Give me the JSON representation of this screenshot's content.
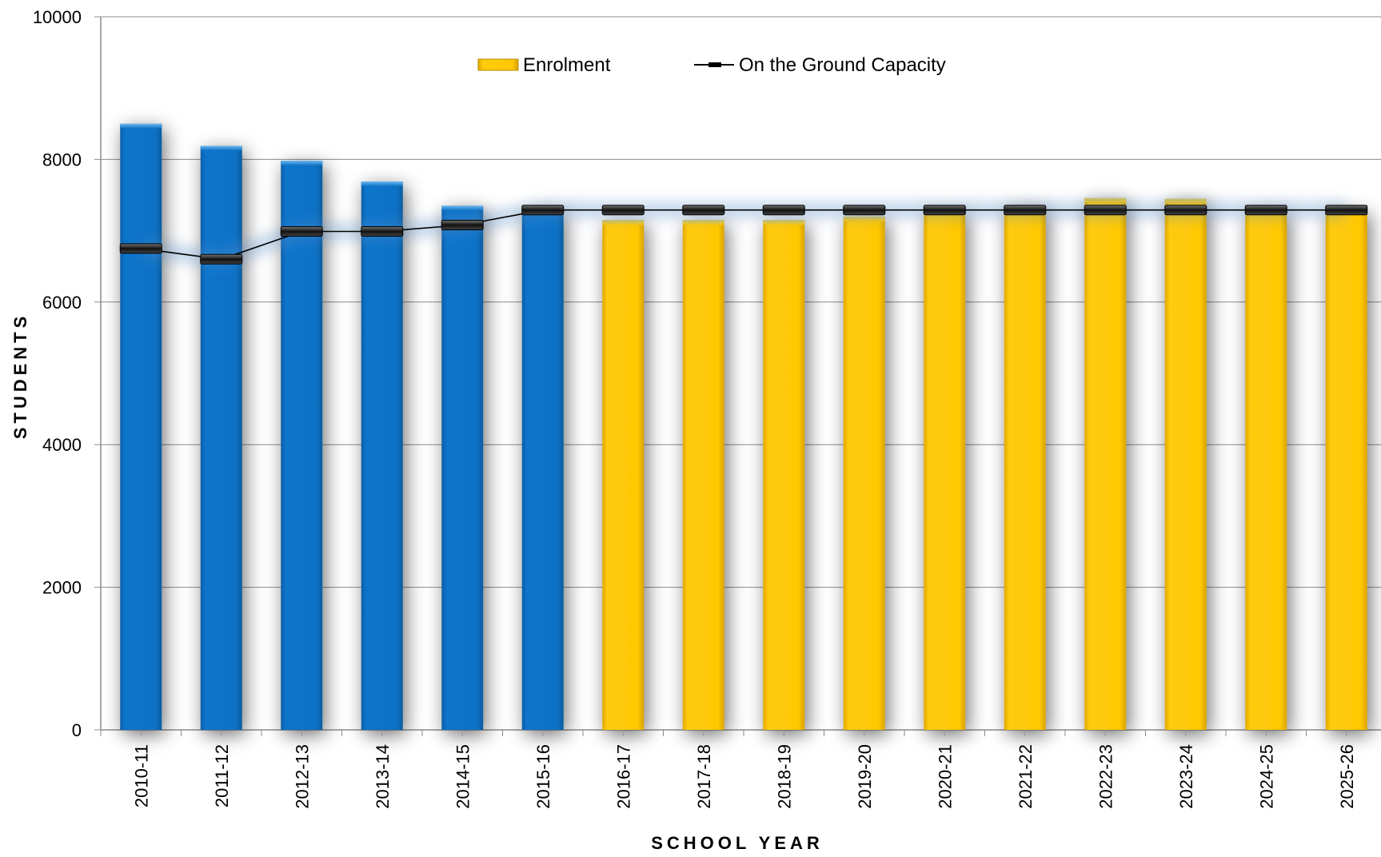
{
  "chart_data": {
    "type": "bar",
    "title": "",
    "xlabel": "SCHOOL YEAR",
    "ylabel": "STUDENTS",
    "ylim": [
      0,
      10000
    ],
    "yticks": [
      "0",
      "2000",
      "4000",
      "6000",
      "8000",
      "10000"
    ],
    "grid": true,
    "legend_position": "top-center",
    "categories": [
      "2010-11",
      "2011-12",
      "2012-13",
      "2013-14",
      "2014-15",
      "2015-16",
      "2016-17",
      "2017-18",
      "2018-19",
      "2019-20",
      "2020-21",
      "2021-22",
      "2022-23",
      "2023-24",
      "2024-25",
      "2025-26"
    ],
    "series": [
      {
        "name": "Enrolment",
        "kind": "bar",
        "values": [
          8500,
          8190,
          7980,
          7690,
          7350,
          7300,
          7150,
          7150,
          7150,
          7200,
          7280,
          7350,
          7460,
          7450,
          7300,
          7300
        ],
        "actual_color": "#0a72c6",
        "projected_color": "#ffc805",
        "projected_from": "2016-17"
      },
      {
        "name": "On the Ground Capacity",
        "kind": "line",
        "values": [
          6750,
          6600,
          6990,
          6990,
          7080,
          7290,
          7290,
          7290,
          7290,
          7290,
          7290,
          7290,
          7290,
          7290,
          7290,
          7290
        ],
        "color": "#000000"
      }
    ]
  }
}
